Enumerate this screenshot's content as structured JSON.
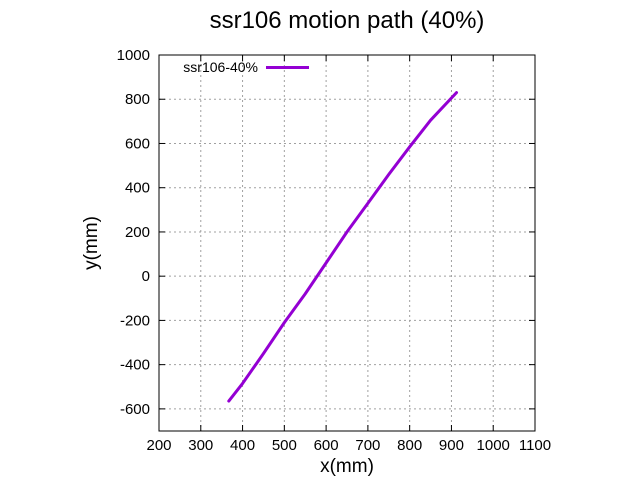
{
  "chart_data": {
    "type": "line",
    "title": "ssr106 motion path (40%)",
    "xlabel": "x(mm)",
    "ylabel": "y(mm)",
    "xlim": [
      200,
      1100
    ],
    "ylim": [
      -700,
      1000
    ],
    "xticks": [
      200,
      300,
      400,
      500,
      600,
      700,
      800,
      900,
      1000,
      1100
    ],
    "yticks": [
      -600,
      -400,
      -200,
      0,
      200,
      400,
      600,
      800,
      1000
    ],
    "grid": true,
    "legend_position": "top-left",
    "series": [
      {
        "name": "ssr106-40%",
        "color": "#9400d3",
        "x": [
          367,
          400,
          450,
          500,
          550,
          600,
          650,
          700,
          750,
          800,
          850,
          912
        ],
        "y": [
          -565,
          -485,
          -350,
          -210,
          -80,
          60,
          200,
          330,
          460,
          585,
          705,
          830
        ]
      }
    ]
  }
}
